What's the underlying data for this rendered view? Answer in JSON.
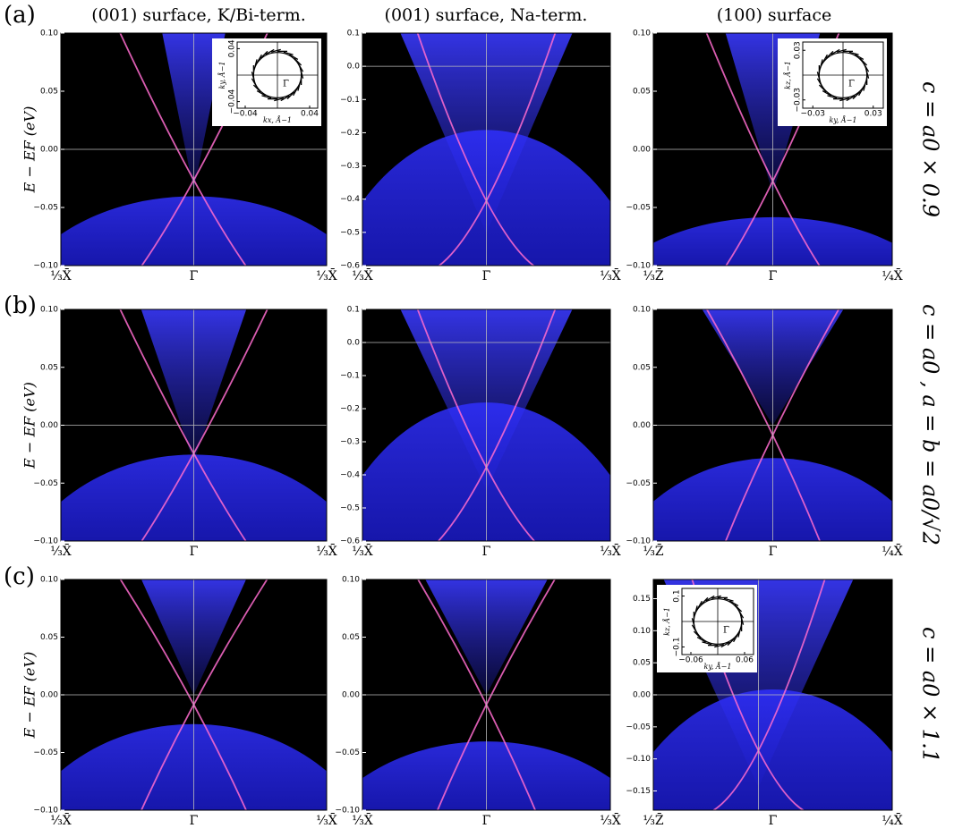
{
  "figure": {
    "row_labels": [
      "(a)",
      "(b)",
      "(c)"
    ],
    "column_titles": [
      "(001) surface, K/Bi-term.",
      "(001) surface, Na-term.",
      "(100) surface"
    ],
    "side_labels": [
      "c = a0 × 0.9",
      "c = a0 , a = b = a0/√2",
      "c = a0 × 1.1"
    ]
  },
  "chart_data": [
    {
      "type": "spectral",
      "ylabel": "E − EF (eV)",
      "ylim": [
        -0.1,
        0.1
      ],
      "yticks": [
        {
          "value": -0.1,
          "label": "−0.10"
        },
        {
          "value": -0.05,
          "label": "−0.05"
        },
        {
          "value": 0,
          "label": "0.00"
        },
        {
          "value": 0.05,
          "label": "0.05"
        },
        {
          "value": 0.1,
          "label": "0.10"
        }
      ],
      "categories": [
        "⅓X̄",
        "Γ̄",
        "⅓X̄"
      ],
      "inset": {
        "xlabel": "kx, Å−1",
        "ylabel": "ky, Å−1",
        "center_label": "Γ̄",
        "xlim": [
          -0.05,
          0.05
        ],
        "ylim": [
          -0.05,
          0.05
        ],
        "xticks": [
          {
            "value": -0.04,
            "label": "−0.04"
          },
          {
            "value": 0.04,
            "label": "0.04"
          }
        ],
        "yticks": [
          {
            "value": -0.04,
            "label": "−0.04"
          },
          {
            "value": 0.04,
            "label": "0.04"
          }
        ]
      }
    },
    {
      "type": "spectral",
      "ylim": [
        -0.6,
        0.1
      ],
      "yticks": [
        {
          "value": -0.6,
          "label": "−0.6"
        },
        {
          "value": -0.5,
          "label": "−0.5"
        },
        {
          "value": -0.4,
          "label": "−0.4"
        },
        {
          "value": -0.3,
          "label": "−0.3"
        },
        {
          "value": -0.2,
          "label": "−0.2"
        },
        {
          "value": -0.1,
          "label": "−0.1"
        },
        {
          "value": 0,
          "label": "0.0"
        },
        0.1
      ],
      "categories": [
        "⅓X̄",
        "Γ̄",
        "⅓X̄"
      ]
    },
    {
      "type": "spectral",
      "ylim": [
        -0.1,
        0.1
      ],
      "yticks": [
        {
          "value": -0.1,
          "label": "−0.10"
        },
        {
          "value": -0.05,
          "label": "−0.05"
        },
        {
          "value": 0,
          "label": "0.00"
        },
        {
          "value": 0.05,
          "label": "0.05"
        },
        {
          "value": 0.1,
          "label": "0.10"
        }
      ],
      "categories": [
        "⅓Z̄",
        "Γ̄",
        "¼X̄"
      ],
      "inset": {
        "xlabel": "ky, Å−1",
        "ylabel": "kz, Å−1",
        "center_label": "Γ̄",
        "xlim": [
          -0.04,
          0.04
        ],
        "ylim": [
          -0.04,
          0.04
        ],
        "xticks": [
          {
            "value": -0.03,
            "label": "−0.03"
          },
          0.03
        ],
        "yticks": [
          {
            "value": -0.03,
            "label": "−0.03"
          },
          0.03
        ]
      }
    },
    {
      "type": "spectral",
      "ylabel": "E − EF (eV)",
      "ylim": [
        -0.1,
        0.1
      ],
      "yticks": [
        {
          "value": -0.1,
          "label": "−0.10"
        },
        {
          "value": -0.05,
          "label": "−0.05"
        },
        {
          "value": 0,
          "label": "0.00"
        },
        {
          "value": 0.05,
          "label": "0.05"
        },
        {
          "value": 0.1,
          "label": "0.10"
        }
      ],
      "categories": [
        "⅓X̄",
        "Γ̄",
        "⅓X̄"
      ]
    },
    {
      "type": "spectral",
      "ylim": [
        -0.6,
        0.1
      ],
      "yticks": [
        {
          "value": -0.6,
          "label": "−0.6"
        },
        {
          "value": -0.5,
          "label": "−0.5"
        },
        {
          "value": -0.4,
          "label": "−0.4"
        },
        {
          "value": -0.3,
          "label": "−0.3"
        },
        {
          "value": -0.2,
          "label": "−0.2"
        },
        {
          "value": -0.1,
          "label": "−0.1"
        },
        {
          "value": 0,
          "label": "0.0"
        },
        0.1
      ],
      "categories": [
        "⅓X̄",
        "Γ̄",
        "⅓X̄"
      ]
    },
    {
      "type": "spectral",
      "ylim": [
        -0.1,
        0.1
      ],
      "yticks": [
        {
          "value": -0.1,
          "label": "−0.10"
        },
        {
          "value": -0.05,
          "label": "−0.05"
        },
        {
          "value": 0,
          "label": "0.00"
        },
        {
          "value": 0.05,
          "label": "0.05"
        },
        {
          "value": 0.1,
          "label": "0.10"
        }
      ],
      "categories": [
        "⅓Z̄",
        "Γ̄",
        "¼X̄"
      ]
    },
    {
      "type": "spectral",
      "ylabel": "E − EF (eV)",
      "ylim": [
        -0.1,
        0.1
      ],
      "yticks": [
        {
          "value": -0.1,
          "label": "−0.10"
        },
        {
          "value": -0.05,
          "label": "−0.05"
        },
        {
          "value": 0,
          "label": "0.00"
        },
        {
          "value": 0.05,
          "label": "0.05"
        },
        {
          "value": 0.1,
          "label": "0.10"
        }
      ],
      "categories": [
        "⅓X̄",
        "Γ̄",
        "⅓X̄"
      ]
    },
    {
      "type": "spectral",
      "ylim": [
        -0.1,
        0.1
      ],
      "yticks": [
        {
          "value": -0.1,
          "label": "−0.10"
        },
        {
          "value": -0.05,
          "label": "−0.05"
        },
        {
          "value": 0,
          "label": "0.00"
        },
        {
          "value": 0.05,
          "label": "0.05"
        },
        {
          "value": 0.1,
          "label": "0.10"
        }
      ],
      "categories": [
        "⅓X̄",
        "Γ̄",
        "⅓X̄"
      ]
    },
    {
      "type": "spectral",
      "ylim": [
        -0.18,
        0.18
      ],
      "yticks": [
        {
          "value": -0.15,
          "label": "−0.15"
        },
        {
          "value": -0.1,
          "label": "−0.10"
        },
        {
          "value": -0.05,
          "label": "−0.05"
        },
        {
          "value": 0,
          "label": "0.00"
        },
        {
          "value": 0.05,
          "label": "0.05"
        },
        {
          "value": 0.1,
          "label": "0.10"
        },
        {
          "value": 0.15,
          "label": "0.15"
        }
      ],
      "categories": [
        "⅓Z̄",
        "Γ̄",
        "¼X̄"
      ],
      "inset": {
        "xlabel": "ky, Å−1",
        "ylabel": "kz, Å−1",
        "center_label": "Γ̄",
        "xlim": [
          -0.08,
          0.08
        ],
        "ylim": [
          -0.13,
          0.13
        ],
        "xticks": [
          {
            "value": -0.06,
            "label": "−0.06"
          },
          0.06
        ],
        "yticks": [
          {
            "value": -0.1,
            "label": "−0.1"
          },
          0.1
        ]
      }
    }
  ]
}
